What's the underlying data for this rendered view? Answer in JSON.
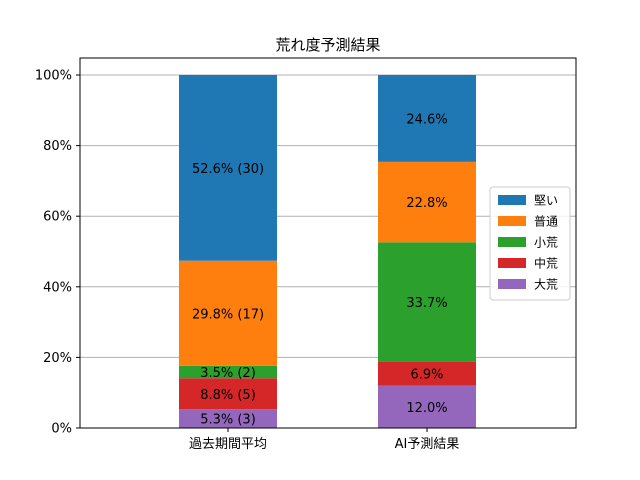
{
  "chart_data": {
    "type": "bar",
    "stacked": true,
    "title": "荒れ度予測結果",
    "xlabel": "",
    "ylabel": "",
    "ylim": [
      0,
      100
    ],
    "y_tick_format": "percent",
    "y_ticks": [
      "0%",
      "20%",
      "40%",
      "60%",
      "80%",
      "100%"
    ],
    "grid": "y",
    "legend_position": "right",
    "categories": [
      "過去期間平均",
      "AI予測結果"
    ],
    "series": [
      {
        "name": "大荒",
        "color": "#9467bd",
        "values": [
          5.3,
          12.0
        ],
        "labels": [
          "5.3% (3)",
          "12.0%"
        ]
      },
      {
        "name": "中荒",
        "color": "#d62728",
        "values": [
          8.8,
          6.9
        ],
        "labels": [
          "8.8% (5)",
          "6.9%"
        ]
      },
      {
        "name": "小荒",
        "color": "#2ca02c",
        "values": [
          3.5,
          33.7
        ],
        "labels": [
          "3.5% (2)",
          "33.7%"
        ]
      },
      {
        "name": "普通",
        "color": "#ff7f0e",
        "values": [
          29.8,
          22.8
        ],
        "labels": [
          "29.8% (17)",
          "22.8%"
        ]
      },
      {
        "name": "堅い",
        "color": "#1f77b4",
        "values": [
          52.6,
          24.6
        ],
        "labels": [
          "52.6% (30)",
          "24.6%"
        ]
      }
    ],
    "legend_order": [
      "堅い",
      "普通",
      "小荒",
      "中荒",
      "大荒"
    ]
  }
}
